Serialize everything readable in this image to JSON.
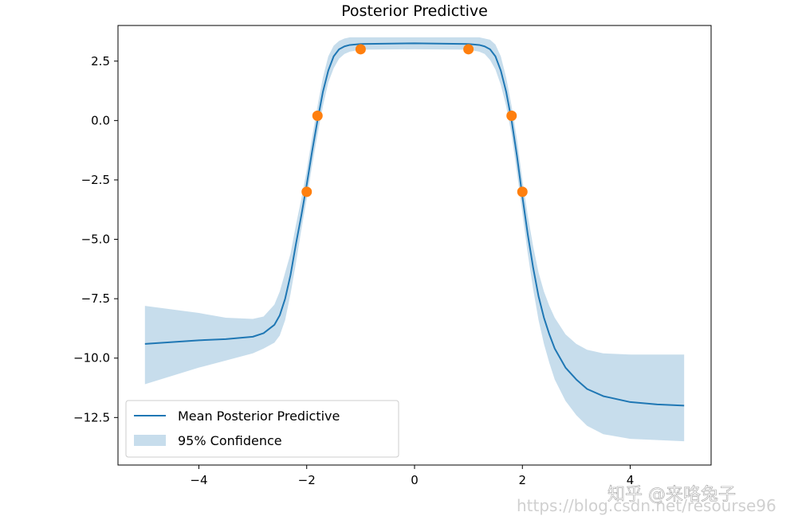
{
  "chart_data": {
    "type": "line",
    "title": "Posterior Predictive",
    "xlabel": "",
    "ylabel": "",
    "xlim": [
      -5.5,
      5.5
    ],
    "ylim": [
      -14.5,
      4.0
    ],
    "xticks": [
      -4,
      -2,
      0,
      2,
      4
    ],
    "xtick_labels": [
      "−4",
      "−2",
      "0",
      "2",
      "4"
    ],
    "yticks": [
      2.5,
      0.0,
      -2.5,
      -5.0,
      -7.5,
      -10.0,
      -12.5
    ],
    "ytick_labels": [
      "2.5",
      "0.0",
      "−2.5",
      "−5.0",
      "−7.5",
      "−10.0",
      "−12.5"
    ],
    "grid": false,
    "legend_position": "lower-left",
    "series": [
      {
        "name": "Mean Posterior Predictive",
        "kind": "line",
        "color": "#1f77b4",
        "x": [
          -5.0,
          -4.0,
          -3.5,
          -3.0,
          -2.8,
          -2.6,
          -2.5,
          -2.4,
          -2.3,
          -2.2,
          -2.1,
          -2.0,
          -1.9,
          -1.8,
          -1.7,
          -1.6,
          -1.5,
          -1.4,
          -1.3,
          -1.2,
          -1.0,
          0.0,
          1.0,
          1.2,
          1.3,
          1.4,
          1.5,
          1.6,
          1.7,
          1.8,
          1.9,
          2.0,
          2.1,
          2.2,
          2.3,
          2.4,
          2.5,
          2.6,
          2.8,
          3.0,
          3.2,
          3.5,
          4.0,
          4.5,
          5.0
        ],
        "y": [
          -9.4,
          -9.25,
          -9.2,
          -9.1,
          -8.95,
          -8.6,
          -8.2,
          -7.5,
          -6.5,
          -5.2,
          -4.0,
          -2.7,
          -1.3,
          0.0,
          1.2,
          2.1,
          2.7,
          3.0,
          3.12,
          3.18,
          3.22,
          3.25,
          3.22,
          3.18,
          3.12,
          3.0,
          2.7,
          2.1,
          1.2,
          0.0,
          -1.5,
          -3.2,
          -4.8,
          -6.2,
          -7.4,
          -8.3,
          -9.0,
          -9.6,
          -10.4,
          -10.9,
          -11.3,
          -11.6,
          -11.85,
          -11.95,
          -12.0
        ]
      },
      {
        "name": "95% Confidence",
        "kind": "band",
        "color": "#1f77b4",
        "opacity": 0.25,
        "x": [
          -5.0,
          -4.0,
          -3.5,
          -3.0,
          -2.8,
          -2.6,
          -2.5,
          -2.4,
          -2.3,
          -2.2,
          -2.1,
          -2.0,
          -1.9,
          -1.8,
          -1.7,
          -1.6,
          -1.5,
          -1.4,
          -1.3,
          -1.2,
          -1.0,
          0.0,
          1.0,
          1.2,
          1.3,
          1.4,
          1.5,
          1.6,
          1.7,
          1.8,
          1.9,
          2.0,
          2.1,
          2.2,
          2.3,
          2.4,
          2.5,
          2.6,
          2.8,
          3.0,
          3.2,
          3.5,
          4.0,
          4.5,
          5.0
        ],
        "lower": [
          -11.1,
          -10.4,
          -10.1,
          -9.8,
          -9.6,
          -9.35,
          -9.05,
          -8.4,
          -7.3,
          -6.0,
          -4.6,
          -3.3,
          -1.9,
          -0.6,
          0.6,
          1.6,
          2.2,
          2.6,
          2.8,
          2.9,
          2.98,
          3.0,
          2.98,
          2.9,
          2.8,
          2.55,
          2.15,
          1.5,
          0.6,
          -0.6,
          -2.2,
          -3.9,
          -5.6,
          -7.1,
          -8.4,
          -9.4,
          -10.2,
          -10.9,
          -11.8,
          -12.4,
          -12.85,
          -13.2,
          -13.4,
          -13.45,
          -13.5
        ],
        "upper": [
          -7.8,
          -8.1,
          -8.3,
          -8.35,
          -8.25,
          -7.75,
          -7.2,
          -6.4,
          -5.6,
          -4.4,
          -3.3,
          -2.1,
          -0.7,
          0.6,
          1.8,
          2.7,
          3.15,
          3.35,
          3.45,
          3.5,
          3.5,
          3.5,
          3.5,
          3.5,
          3.45,
          3.4,
          3.2,
          2.7,
          1.8,
          0.6,
          -0.8,
          -2.5,
          -4.0,
          -5.3,
          -6.4,
          -7.2,
          -7.8,
          -8.3,
          -9.0,
          -9.4,
          -9.65,
          -9.8,
          -9.85,
          -9.85,
          -9.85
        ]
      },
      {
        "name": "",
        "kind": "scatter",
        "color": "#ff7f0e",
        "x": [
          -2.0,
          -1.8,
          -1.0,
          1.0,
          1.8,
          2.0
        ],
        "y": [
          -3.0,
          0.2,
          3.0,
          3.0,
          0.2,
          -3.0
        ]
      }
    ]
  },
  "watermark": {
    "zhihu": "知乎 @来咯兔子",
    "csdn": "https://blog.csdn.net/resourse96"
  }
}
